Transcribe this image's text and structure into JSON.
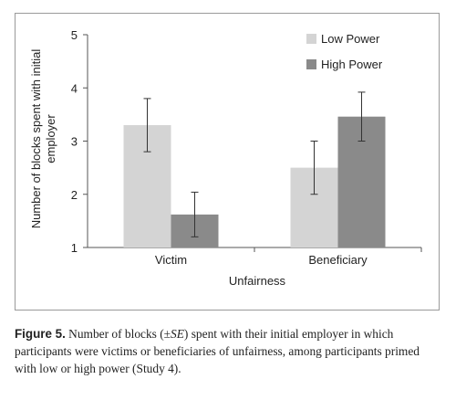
{
  "chart_data": {
    "type": "bar",
    "xlabel": "Unfairness",
    "ylabel_lines": [
      "Number of blocks spent with initial",
      "employer"
    ],
    "categories": [
      "Victim",
      "Beneficiary"
    ],
    "series": [
      {
        "name": "Low Power",
        "color": "#d4d4d4",
        "values": [
          3.3,
          2.5
        ],
        "errors": [
          0.5,
          0.5
        ]
      },
      {
        "name": "High Power",
        "color": "#8a8a8a",
        "values": [
          1.62,
          3.46
        ],
        "errors": [
          0.42,
          0.46
        ]
      }
    ],
    "ylim": [
      1,
      5
    ],
    "yticks": [
      "1",
      "2",
      "3",
      "4",
      "5"
    ],
    "legend_position": "top-right",
    "grid": false
  },
  "caption": {
    "label": "Figure 5.",
    "text_before": "Number of blocks (±",
    "se": "SE",
    "text_after": ") spent with their initial employer in which participants were victims or beneficiaries of unfairness, among participants primed with low or high power (Study 4)."
  }
}
